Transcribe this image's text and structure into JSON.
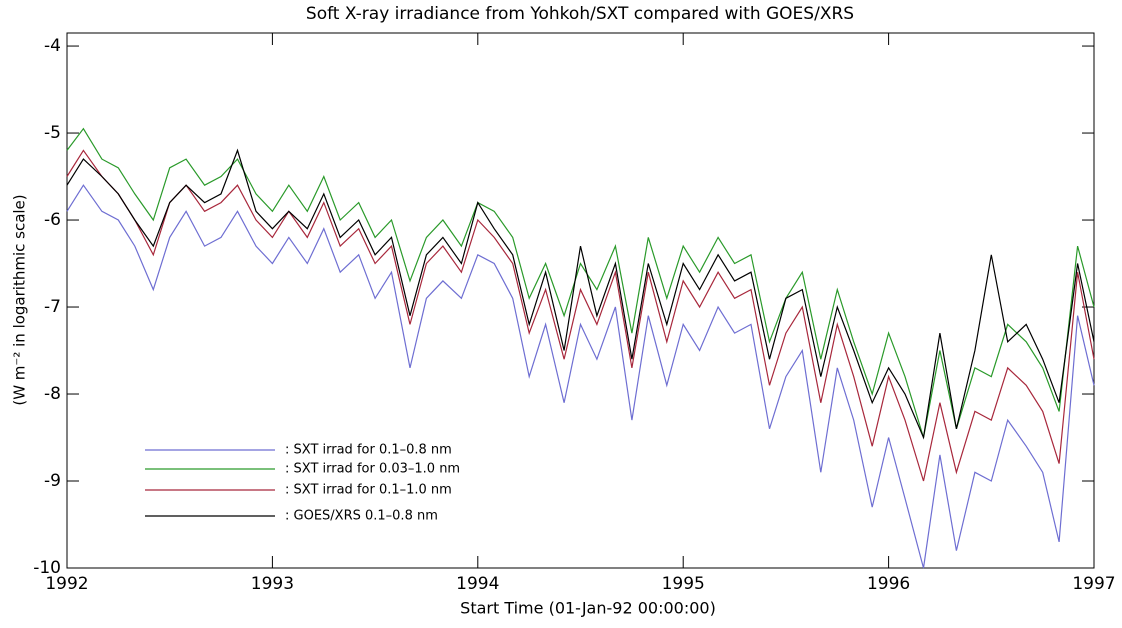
{
  "chart_data": {
    "type": "line",
    "title": "Soft X-ray irradiance from Yohkoh/SXT compared with GOES/XRS",
    "xlabel": "Start Time (01-Jan-92 00:00:00)",
    "ylabel": "(W m⁻² in logarithmic scale)",
    "x": [
      1992.0,
      1992.08,
      1992.17,
      1992.25,
      1992.33,
      1992.42,
      1992.5,
      1992.58,
      1992.67,
      1992.75,
      1992.83,
      1992.92,
      1993.0,
      1993.08,
      1993.17,
      1993.25,
      1993.33,
      1993.42,
      1993.5,
      1993.58,
      1993.67,
      1993.75,
      1993.83,
      1993.92,
      1994.0,
      1994.08,
      1994.17,
      1994.25,
      1994.33,
      1994.42,
      1994.5,
      1994.58,
      1994.67,
      1994.75,
      1994.83,
      1994.92,
      1995.0,
      1995.08,
      1995.17,
      1995.25,
      1995.33,
      1995.42,
      1995.5,
      1995.58,
      1995.67,
      1995.75,
      1995.83,
      1995.92,
      1996.0,
      1996.08,
      1996.17,
      1996.25,
      1996.33,
      1996.42,
      1996.5,
      1996.58,
      1996.67,
      1996.75,
      1996.83,
      1996.92,
      1997.0
    ],
    "series": [
      {
        "name": ": SXT irrad for 0.1–0.8 nm",
        "color": "#6e6ed2",
        "values": [
          -5.9,
          -5.6,
          -5.9,
          -6.0,
          -6.3,
          -6.8,
          -6.2,
          -5.9,
          -6.3,
          -6.2,
          -5.9,
          -6.3,
          -6.5,
          -6.2,
          -6.5,
          -6.1,
          -6.6,
          -6.4,
          -6.9,
          -6.6,
          -7.7,
          -6.9,
          -6.7,
          -6.9,
          -6.4,
          -6.5,
          -6.9,
          -7.8,
          -7.2,
          -8.1,
          -7.2,
          -7.6,
          -7.0,
          -8.3,
          -7.1,
          -7.9,
          -7.2,
          -7.5,
          -7.0,
          -7.3,
          -7.2,
          -8.4,
          -7.8,
          -7.5,
          -8.9,
          -7.7,
          -8.3,
          -9.3,
          -8.5,
          -9.2,
          -10.0,
          -8.7,
          -9.8,
          -8.9,
          -9.0,
          -8.3,
          -8.6,
          -8.9,
          -9.7,
          -7.1,
          -7.9
        ]
      },
      {
        "name": ": SXT irrad for 0.03–1.0 nm",
        "color": "#2a9a2a",
        "values": [
          -5.2,
          -4.95,
          -5.3,
          -5.4,
          -5.7,
          -6.0,
          -5.4,
          -5.3,
          -5.6,
          -5.5,
          -5.3,
          -5.7,
          -5.9,
          -5.6,
          -5.9,
          -5.5,
          -6.0,
          -5.8,
          -6.2,
          -6.0,
          -6.7,
          -6.2,
          -6.0,
          -6.3,
          -5.8,
          -5.9,
          -6.2,
          -6.9,
          -6.5,
          -7.1,
          -6.5,
          -6.8,
          -6.3,
          -7.3,
          -6.2,
          -6.9,
          -6.3,
          -6.6,
          -6.2,
          -6.5,
          -6.4,
          -7.4,
          -6.9,
          -6.6,
          -7.6,
          -6.8,
          -7.4,
          -8.0,
          -7.3,
          -7.8,
          -8.5,
          -7.5,
          -8.4,
          -7.7,
          -7.8,
          -7.2,
          -7.4,
          -7.7,
          -8.2,
          -6.3,
          -7.0
        ]
      },
      {
        "name": ": SXT irrad for 0.1–1.0 nm",
        "color": "#a8283c",
        "values": [
          -5.5,
          -5.2,
          -5.5,
          -5.7,
          -6.0,
          -6.4,
          -5.8,
          -5.6,
          -5.9,
          -5.8,
          -5.6,
          -6.0,
          -6.2,
          -5.9,
          -6.2,
          -5.8,
          -6.3,
          -6.1,
          -6.5,
          -6.3,
          -7.2,
          -6.5,
          -6.3,
          -6.6,
          -6.0,
          -6.2,
          -6.5,
          -7.3,
          -6.8,
          -7.6,
          -6.8,
          -7.2,
          -6.6,
          -7.7,
          -6.6,
          -7.4,
          -6.7,
          -7.0,
          -6.6,
          -6.9,
          -6.8,
          -7.9,
          -7.3,
          -7.0,
          -8.1,
          -7.2,
          -7.8,
          -8.6,
          -7.8,
          -8.3,
          -9.0,
          -8.1,
          -8.9,
          -8.2,
          -8.3,
          -7.7,
          -7.9,
          -8.2,
          -8.8,
          -6.6,
          -7.6
        ]
      },
      {
        "name": ": GOES/XRS 0.1–0.8 nm",
        "color": "#000000",
        "values": [
          -5.6,
          -5.3,
          -5.5,
          -5.7,
          -6.0,
          -6.3,
          -5.8,
          -5.6,
          -5.8,
          -5.7,
          -5.2,
          -5.9,
          -6.1,
          -5.9,
          -6.1,
          -5.7,
          -6.2,
          -6.0,
          -6.4,
          -6.2,
          -7.1,
          -6.4,
          -6.2,
          -6.5,
          -5.8,
          -6.1,
          -6.4,
          -7.2,
          -6.6,
          -7.5,
          -6.3,
          -7.1,
          -6.5,
          -7.6,
          -6.5,
          -7.2,
          -6.5,
          -6.8,
          -6.4,
          -6.7,
          -6.6,
          -7.6,
          -6.9,
          -6.8,
          -7.8,
          -7.0,
          -7.5,
          -8.1,
          -7.7,
          -8.0,
          -8.5,
          -7.3,
          -8.4,
          -7.5,
          -6.4,
          -7.4,
          -7.2,
          -7.6,
          -8.1,
          -6.5,
          -7.4
        ]
      }
    ],
    "xlim": [
      1992,
      1997
    ],
    "xticks": [
      1992,
      1993,
      1994,
      1995,
      1996,
      1997
    ],
    "ylim": [
      -10,
      -3.85
    ],
    "yticks": [
      -10,
      -9,
      -8,
      -7,
      -6,
      -5,
      -4
    ],
    "legend": "lower left"
  }
}
